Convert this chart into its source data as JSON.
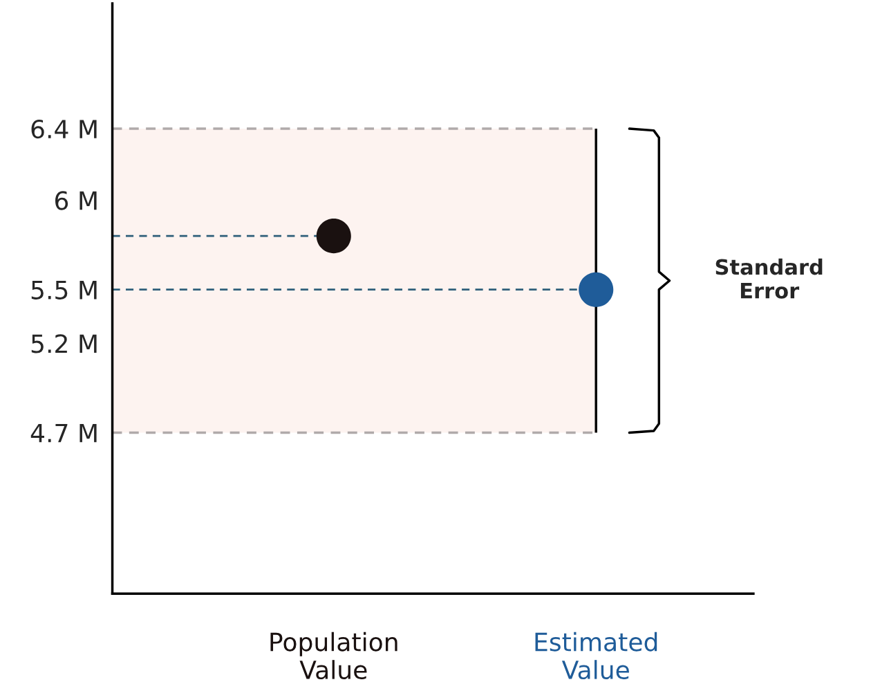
{
  "chart_data": {
    "type": "scatter",
    "categories": [
      "Population\nValue",
      "Estimated\nValue"
    ],
    "series": [
      {
        "values": [
          5.8,
          5.5
        ],
        "colors": [
          "#1a1110",
          "#1f5c99"
        ],
        "errors": [
          null,
          [
            4.7,
            6.4
          ]
        ]
      }
    ],
    "ylim": [
      3.8,
      7.1
    ],
    "yticks": [
      {
        "value": 6.4,
        "label": "6.4 M"
      },
      {
        "value": 6,
        "label": "6 M"
      },
      {
        "value": 5.5,
        "label": "5.5 M"
      },
      {
        "value": 5.2,
        "label": "5.2 M"
      },
      {
        "value": 4.7,
        "label": "4.7 M"
      }
    ],
    "ref_lines": [
      {
        "axis": "y",
        "value": 6.4,
        "color": "#b0aaaa",
        "line_style": "dashed"
      },
      {
        "axis": "y",
        "value": 4.7,
        "color": "#b0aaaa",
        "line_style": "dashed"
      },
      {
        "axis": "y",
        "value": 5.8,
        "color": "#2e5f7a",
        "line_style": "dashed"
      },
      {
        "axis": "y",
        "value": 5.5,
        "color": "#2e5f7a",
        "line_style": "dashed"
      }
    ],
    "bands": [
      {
        "axis": "y",
        "from": 4.7,
        "to": 6.4,
        "color": "#fdf3f0"
      }
    ],
    "annotations": [
      "Standard\nError"
    ],
    "grid": false,
    "legend": false,
    "marker": "circle"
  }
}
